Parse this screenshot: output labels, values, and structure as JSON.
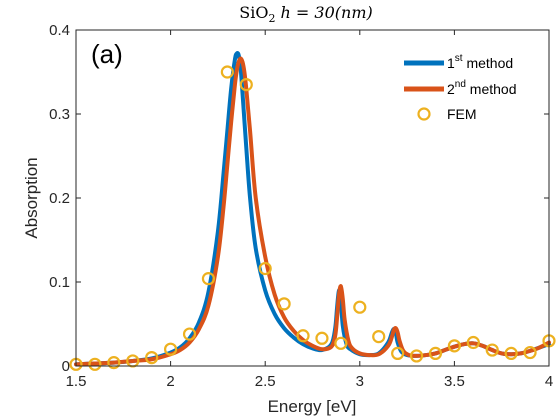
{
  "chart_data": {
    "type": "line",
    "title": {
      "main": "SiO",
      "sub": "2",
      "rest": " h = 30(nm)"
    },
    "panel_label": "(a)",
    "xlabel": "Energy [eV]",
    "ylabel": "Absorption",
    "xlim": [
      1.5,
      4
    ],
    "ylim": [
      0,
      0.4
    ],
    "xticks": [
      1.5,
      2,
      2.5,
      3,
      3.5,
      4
    ],
    "xtick_labels": [
      "1.5",
      "2",
      "2.5",
      "3",
      "3.5",
      "4"
    ],
    "yticks": [
      0,
      0.1,
      0.2,
      0.3,
      0.4
    ],
    "ytick_labels": [
      "0",
      "0.1",
      "0.2",
      "0.3",
      "0.4"
    ],
    "grid": false,
    "legend_position": "top-right",
    "legend": [
      {
        "pre": "1",
        "sup": "st",
        "post": " method"
      },
      {
        "pre": "2",
        "sup": "nd",
        "post": " method"
      },
      {
        "pre": "FEM",
        "sup": "",
        "post": ""
      }
    ],
    "colors": {
      "series1": "#0072BD",
      "series2": "#D95319",
      "fem": "#EDB120"
    },
    "series": [
      {
        "name": "1st method",
        "x": [
          1.5,
          1.6,
          1.7,
          1.8,
          1.9,
          2.0,
          2.05,
          2.1,
          2.15,
          2.2,
          2.25,
          2.28,
          2.3,
          2.32,
          2.34,
          2.35,
          2.36,
          2.37,
          2.38,
          2.4,
          2.42,
          2.45,
          2.5,
          2.55,
          2.6,
          2.65,
          2.7,
          2.75,
          2.8,
          2.85,
          2.87,
          2.88,
          2.89,
          2.9,
          2.91,
          2.93,
          2.95,
          3.0,
          3.05,
          3.1,
          3.15,
          3.17,
          3.18,
          3.19,
          3.2,
          3.22,
          3.25,
          3.3,
          3.35,
          3.4,
          3.45,
          3.5,
          3.55,
          3.6,
          3.65,
          3.7,
          3.75,
          3.8,
          3.85,
          3.9,
          3.95,
          4.0
        ],
        "y": [
          0.002,
          0.003,
          0.004,
          0.006,
          0.009,
          0.016,
          0.022,
          0.033,
          0.052,
          0.088,
          0.16,
          0.23,
          0.28,
          0.33,
          0.365,
          0.372,
          0.37,
          0.355,
          0.325,
          0.26,
          0.2,
          0.14,
          0.09,
          0.062,
          0.045,
          0.034,
          0.026,
          0.021,
          0.019,
          0.026,
          0.045,
          0.07,
          0.09,
          0.078,
          0.048,
          0.026,
          0.02,
          0.014,
          0.013,
          0.015,
          0.028,
          0.04,
          0.044,
          0.04,
          0.028,
          0.017,
          0.013,
          0.012,
          0.013,
          0.015,
          0.019,
          0.023,
          0.026,
          0.027,
          0.024,
          0.019,
          0.015,
          0.014,
          0.015,
          0.018,
          0.022,
          0.026
        ]
      },
      {
        "name": "2nd method",
        "x": [
          1.5,
          1.6,
          1.7,
          1.8,
          1.9,
          2.0,
          2.05,
          2.1,
          2.15,
          2.2,
          2.25,
          2.28,
          2.3,
          2.32,
          2.34,
          2.35,
          2.36,
          2.37,
          2.38,
          2.39,
          2.4,
          2.42,
          2.45,
          2.5,
          2.55,
          2.6,
          2.65,
          2.7,
          2.75,
          2.8,
          2.85,
          2.87,
          2.88,
          2.89,
          2.9,
          2.91,
          2.92,
          2.94,
          2.96,
          3.0,
          3.05,
          3.1,
          3.15,
          3.17,
          3.18,
          3.19,
          3.2,
          3.21,
          3.23,
          3.26,
          3.3,
          3.35,
          3.4,
          3.45,
          3.5,
          3.55,
          3.6,
          3.65,
          3.7,
          3.75,
          3.8,
          3.85,
          3.9,
          3.95,
          4.0
        ],
        "y": [
          0.002,
          0.003,
          0.004,
          0.006,
          0.008,
          0.014,
          0.019,
          0.028,
          0.044,
          0.072,
          0.13,
          0.19,
          0.24,
          0.29,
          0.335,
          0.352,
          0.362,
          0.366,
          0.362,
          0.35,
          0.33,
          0.28,
          0.2,
          0.13,
          0.085,
          0.058,
          0.042,
          0.031,
          0.024,
          0.02,
          0.023,
          0.036,
          0.058,
          0.085,
          0.095,
          0.08,
          0.055,
          0.03,
          0.021,
          0.015,
          0.013,
          0.014,
          0.024,
          0.035,
          0.043,
          0.045,
          0.04,
          0.03,
          0.018,
          0.013,
          0.012,
          0.013,
          0.015,
          0.019,
          0.023,
          0.026,
          0.027,
          0.024,
          0.019,
          0.015,
          0.014,
          0.015,
          0.018,
          0.022,
          0.028
        ]
      },
      {
        "name": "FEM",
        "x": [
          1.5,
          1.6,
          1.7,
          1.8,
          1.9,
          2.0,
          2.1,
          2.2,
          2.3,
          2.4,
          2.5,
          2.6,
          2.7,
          2.8,
          2.9,
          3.0,
          3.1,
          3.2,
          3.3,
          3.4,
          3.5,
          3.6,
          3.7,
          3.8,
          3.9,
          4.0
        ],
        "y": [
          0.002,
          0.002,
          0.004,
          0.006,
          0.01,
          0.02,
          0.038,
          0.104,
          0.35,
          0.335,
          0.116,
          0.074,
          0.036,
          0.033,
          0.027,
          0.07,
          0.035,
          0.015,
          0.012,
          0.015,
          0.024,
          0.028,
          0.019,
          0.015,
          0.016,
          0.03
        ]
      }
    ]
  }
}
